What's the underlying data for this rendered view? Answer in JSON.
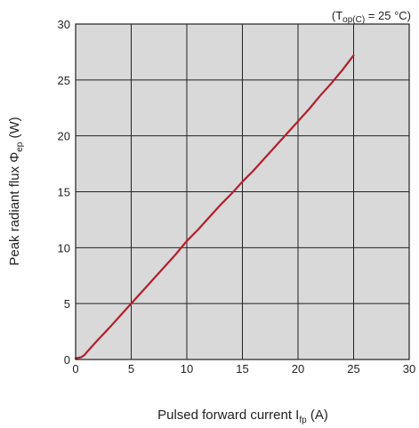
{
  "chart_data": {
    "type": "line",
    "title": "",
    "annotation": {
      "prefix": "(T",
      "subscript": "op(C)",
      "suffix": " = 25 °C)"
    },
    "xlabel": {
      "text": "Pulsed forward current I",
      "subscript": "fp",
      "unit": " (A)"
    },
    "ylabel": {
      "text": "Peak radiant flux Φ",
      "subscript": "ep",
      "unit": " (W)"
    },
    "xlim": [
      0,
      30
    ],
    "ylim": [
      0,
      30
    ],
    "xticks": [
      "0",
      "5",
      "10",
      "15",
      "20",
      "25",
      "30"
    ],
    "yticks": [
      "0",
      "5",
      "10",
      "15",
      "20",
      "25",
      "30"
    ],
    "grid": true,
    "colors": {
      "plot_background": "#d9d9d9",
      "grid": "#222222",
      "line": "#b21f2d"
    },
    "series": [
      {
        "x": [
          0,
          0.5,
          0.8,
          1,
          1.5,
          2,
          3,
          4,
          5,
          6,
          7,
          8,
          9,
          10,
          11,
          12,
          13,
          14,
          15,
          16,
          17,
          18,
          19,
          20,
          21,
          22,
          23,
          24,
          25
        ],
        "y": [
          0.1,
          0.2,
          0.4,
          0.65,
          1.2,
          1.75,
          2.8,
          3.9,
          5.0,
          6.1,
          7.2,
          8.3,
          9.4,
          10.6,
          11.6,
          12.7,
          13.8,
          14.8,
          15.9,
          16.9,
          18.0,
          19.1,
          20.2,
          21.3,
          22.4,
          23.6,
          24.7,
          25.9,
          27.2
        ]
      }
    ]
  }
}
